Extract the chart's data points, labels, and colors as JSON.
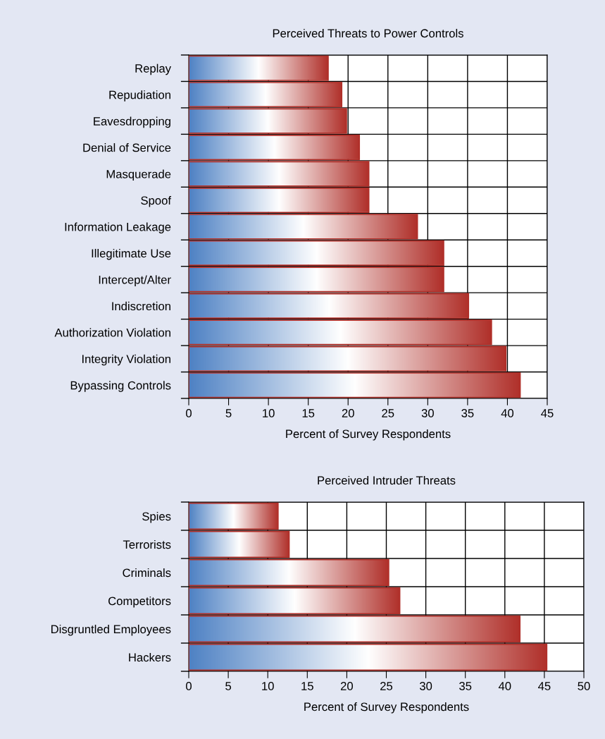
{
  "chart_data": [
    {
      "type": "bar",
      "orientation": "horizontal",
      "title": "Perceived Threats to Power Controls",
      "xlabel": "Percent of Survey Respondents",
      "categories": [
        "Replay",
        "Repudiation",
        "Eavesdropping",
        "Denial of Service",
        "Masquerade",
        "Spoof",
        "Information Leakage",
        "Illegitimate Use",
        "Intercept/Alter",
        "Indiscretion",
        "Authorization Violation",
        "Integrity Violation",
        "Bypassing Controls"
      ],
      "series": [
        {
          "color": "#b0302a",
          "values": [
            17.5,
            19.2,
            19.8,
            21.4,
            22.6,
            22.6,
            28.7,
            32.0,
            32.0,
            35.1,
            38.0,
            39.8,
            41.6
          ]
        }
      ],
      "xlim": [
        0,
        45
      ],
      "xticks": [
        0,
        5,
        10,
        15,
        20,
        25,
        30,
        35,
        40,
        45
      ],
      "grid": true,
      "legend": false
    },
    {
      "type": "bar",
      "orientation": "horizontal",
      "title": "Perceived Intruder Threats",
      "xlabel": "Percent of Survey Respondents",
      "categories": [
        "Spies",
        "Terrorists",
        "Criminals",
        "Competitors",
        "Disgruntled Employees",
        "Hackers"
      ],
      "series": [
        {
          "color": "#b0302a",
          "values": [
            11.3,
            12.7,
            25.3,
            26.7,
            41.9,
            45.3
          ]
        }
      ],
      "xlim": [
        0,
        50
      ],
      "xticks": [
        0,
        5,
        10,
        15,
        20,
        25,
        30,
        35,
        40,
        45,
        50
      ],
      "grid": true,
      "legend": false
    }
  ]
}
